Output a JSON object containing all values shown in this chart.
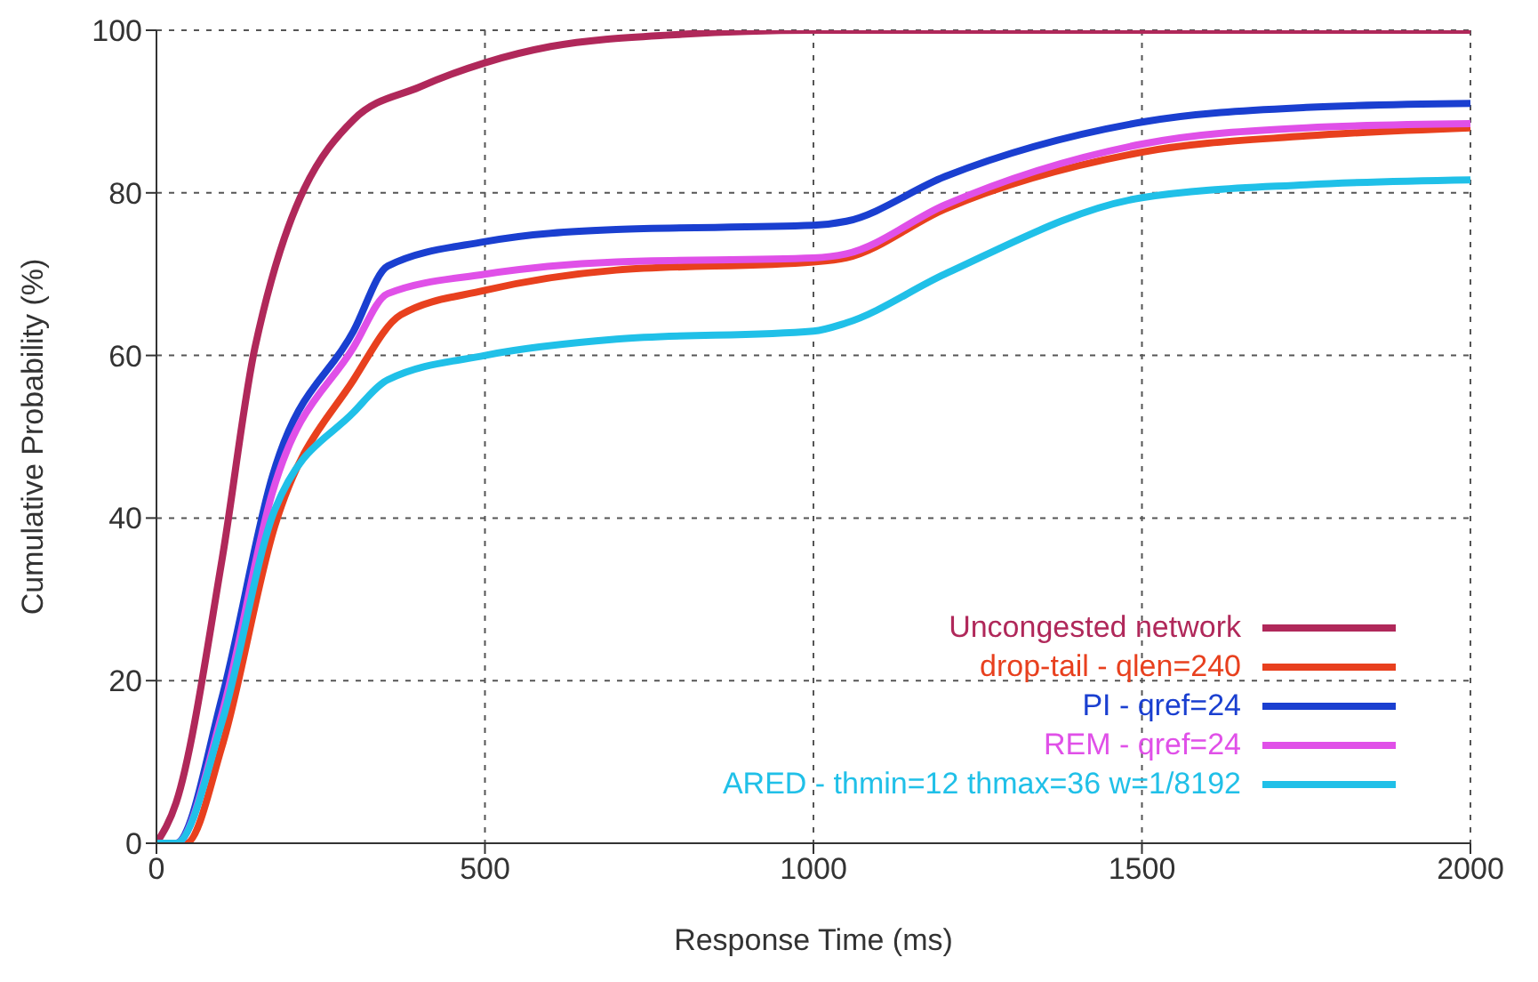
{
  "chart_data": {
    "type": "line",
    "xlabel": "Response Time (ms)",
    "ylabel": "Cumulative Probability (%)",
    "xlim": [
      0,
      2000
    ],
    "ylim": [
      0,
      100
    ],
    "xticks": [
      0,
      500,
      1000,
      1500,
      2000
    ],
    "yticks": [
      0,
      20,
      40,
      60,
      80,
      100
    ],
    "grid": true,
    "legend": "bottom right",
    "marker": "none",
    "line_style": "solid",
    "series": [
      {
        "name": "Uncongested network",
        "color": "#b0285a",
        "x": [
          0,
          30,
          100,
          150,
          300,
          400,
          500,
          600,
          800,
          1000,
          2000
        ],
        "values": [
          0,
          5,
          35,
          61,
          89,
          93,
          96,
          98,
          99.5,
          100,
          100
        ]
      },
      {
        "name": "drop-tail - qlen=240",
        "color": "#e8401e",
        "x": [
          0,
          45,
          100,
          180,
          300,
          372,
          500,
          700,
          1000,
          1050,
          1200,
          1500,
          1750,
          2000
        ],
        "values": [
          0,
          0,
          12,
          39,
          57,
          65,
          68,
          70.5,
          71.5,
          72,
          78,
          85,
          87,
          88
        ]
      },
      {
        "name": "PI - qref=24",
        "color": "#1a3fd0",
        "x": [
          0,
          30,
          100,
          176,
          300,
          352,
          500,
          700,
          1000,
          1050,
          1200,
          1500,
          1750,
          2000
        ],
        "values": [
          0,
          0,
          18,
          45,
          63,
          71,
          74,
          75.5,
          76,
          76.5,
          82,
          88.7,
          90.5,
          91
        ]
      },
      {
        "name": "REM - qref=24",
        "color": "#e050e8",
        "x": [
          0,
          30,
          100,
          176,
          300,
          352,
          500,
          700,
          1000,
          1050,
          1200,
          1500,
          1750,
          2000
        ],
        "values": [
          0,
          0,
          16,
          43,
          61,
          67.6,
          70,
          71.5,
          72,
          72.5,
          78.5,
          86,
          88,
          88.5
        ]
      },
      {
        "name": "ARED - thmin=12 thmax=36 w=1/8192",
        "color": "#20c0e8",
        "x": [
          0,
          30,
          100,
          180,
          300,
          352,
          500,
          700,
          1000,
          1050,
          1200,
          1500,
          1750,
          2000
        ],
        "values": [
          0,
          0,
          15,
          41,
          53,
          57,
          60,
          62,
          63,
          64,
          70,
          79.4,
          81,
          81.6
        ]
      }
    ]
  }
}
